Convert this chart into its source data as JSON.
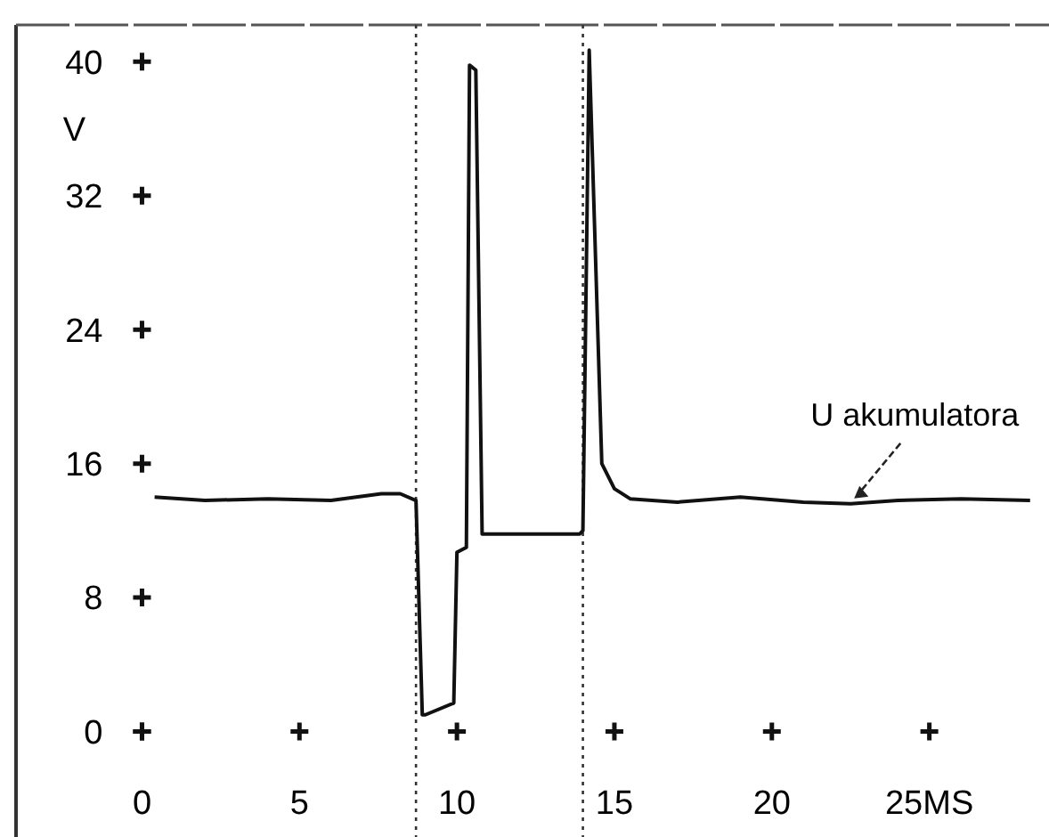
{
  "chart_data": {
    "type": "line",
    "ylabel": "V",
    "x": [
      0.4,
      2,
      4,
      6,
      7.6,
      8.2,
      8.7,
      8.9,
      9.0,
      9.9,
      10.0,
      10.3,
      10.4,
      10.6,
      10.8,
      13.9,
      14.0,
      14.2,
      14.6,
      15.0,
      15.5,
      17,
      19,
      21,
      22.5,
      24,
      26,
      28.2
    ],
    "series": [
      {
        "color": "#111111",
        "values": [
          14.0,
          13.8,
          13.9,
          13.8,
          14.2,
          14.2,
          13.8,
          1.0,
          1.0,
          1.7,
          10.7,
          11,
          39.8,
          39.5,
          11.8,
          11.8,
          12,
          40.7,
          16,
          14.5,
          13.9,
          13.7,
          14.0,
          13.7,
          13.6,
          13.8,
          13.9,
          13.8
        ]
      }
    ],
    "xlim": [
      -4,
      28.8
    ],
    "ylim": [
      -6.3,
      42.2
    ],
    "xticks": [
      0,
      5,
      10,
      15,
      20,
      {
        "value": 25,
        "label": "25MS"
      }
    ],
    "yticks": [
      0,
      8,
      16,
      24,
      32,
      40
    ],
    "ref_lines": [
      {
        "axis": "x",
        "value": 8.7,
        "color": "#333333",
        "line_style": "dotted"
      },
      {
        "axis": "x",
        "value": 14.0,
        "color": "#333333",
        "line_style": "dotted"
      }
    ],
    "annotations": [
      {
        "text": "U akumulatora",
        "x": 22.5,
        "y": 13.6
      }
    ],
    "grid": false,
    "line_style": "solid"
  }
}
